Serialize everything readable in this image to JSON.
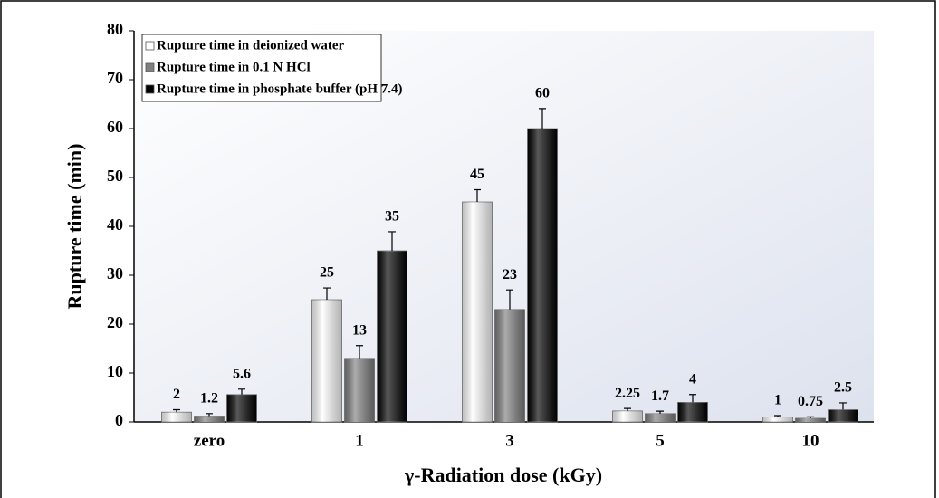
{
  "chart_data": {
    "type": "bar",
    "y_label": "Rupture time (min)",
    "x_label": "γ-Radiation dose (kGy)",
    "categories": [
      "zero",
      "1",
      "3",
      "5",
      "10"
    ],
    "series": [
      {
        "name": "Rupture time in deionized water",
        "color": "#ffffff",
        "values": [
          2,
          25,
          45,
          2.25,
          1
        ],
        "errors": [
          0.5,
          2.4,
          2.5,
          0.5,
          0.3
        ]
      },
      {
        "name": "Rupture time in 0.1 N HCl",
        "color": "#808080",
        "values": [
          1.2,
          13,
          23,
          1.7,
          0.75
        ],
        "errors": [
          0.5,
          2.6,
          4,
          0.5,
          0.3
        ]
      },
      {
        "name": "Rupture time in phosphate buffer (pH 7.4)",
        "color": "#000000",
        "values": [
          5.6,
          35,
          60,
          4,
          2.5
        ],
        "errors": [
          1.1,
          3.9,
          4.1,
          1.6,
          1.4
        ]
      }
    ],
    "ylim": [
      0,
      80
    ],
    "yticks": [
      0,
      10,
      20,
      30,
      40,
      50,
      60,
      70,
      80
    ],
    "legend": "upper left",
    "grid": false
  }
}
